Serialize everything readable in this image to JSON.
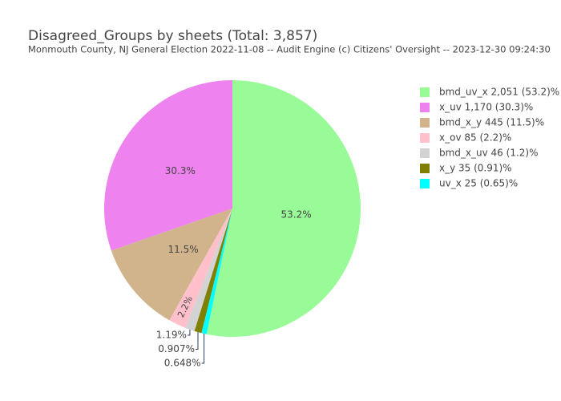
{
  "chart_data": {
    "type": "pie",
    "title": "Disagreed_Groups by sheets (Total: 3,857)",
    "subtitle": "Monmouth County, NJ General Election 2022-11-08 -- Audit Engine (c) Citizens' Oversight -- 2023-12-30 09:24:30",
    "categories": [
      "bmd_uv_x 2,051 (53.2)%",
      "x_uv 1,170 (30.3)%",
      "bmd_x_y 445 (11.5)%",
      "x_ov 85 (2.2)%",
      "bmd_x_uv 46 (1.2)%",
      "x_y 35 (0.91)%",
      "uv_x 25 (0.65)%"
    ],
    "values": [
      53.2,
      30.3,
      11.5,
      2.2,
      1.19,
      0.907,
      0.648
    ],
    "value_labels": [
      "53.2%",
      "30.3%",
      "11.5%",
      "2.2%",
      "1.19%",
      "0.907%",
      "0.648%"
    ],
    "colors": [
      "#98fb98",
      "#ee82ee",
      "#d2b48c",
      "#ffc0cb",
      "#d3d3d3",
      "#808000",
      "#00ffff"
    ],
    "legend": "right"
  }
}
